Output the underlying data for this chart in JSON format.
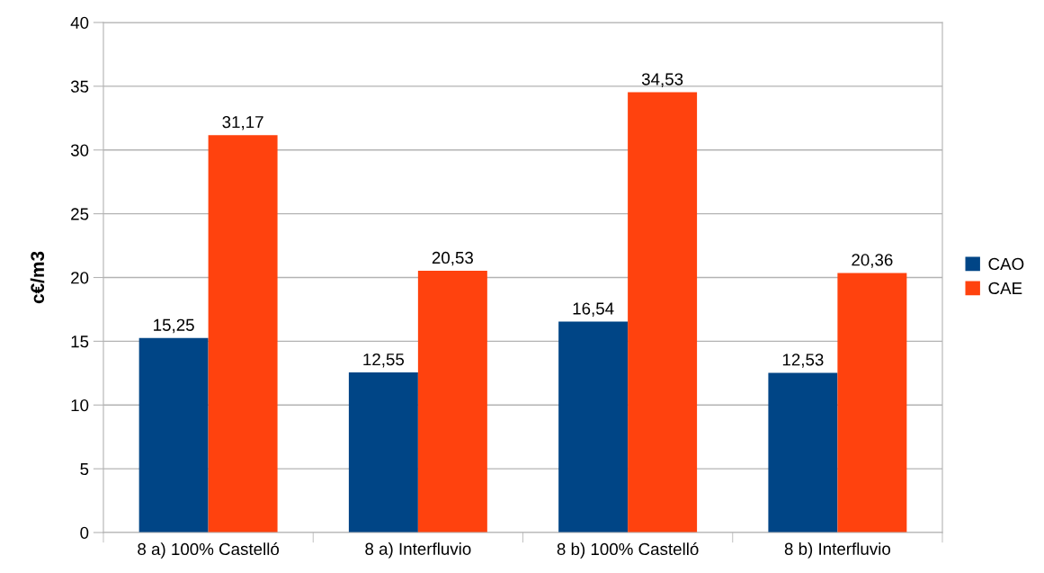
{
  "chart_data": {
    "type": "bar",
    "ylabel": "c€/m3",
    "categories": [
      "8 a) 100% Castelló",
      "8 a) Interfluvio",
      "8 b) 100% Castelló",
      "8 b) Interfluvio"
    ],
    "series": [
      {
        "name": "CAO",
        "color": "#004586",
        "values": [
          15.25,
          12.55,
          16.54,
          12.53
        ],
        "value_labels": [
          "15,25",
          "12,55",
          "16,54",
          "12,53"
        ]
      },
      {
        "name": "CAE",
        "color": "#ff420e",
        "values": [
          31.17,
          20.53,
          34.53,
          20.36
        ],
        "value_labels": [
          "31,17",
          "20,53",
          "34,53",
          "20,36"
        ]
      }
    ],
    "ylim": [
      0,
      40
    ],
    "yticks": [
      0,
      5,
      10,
      15,
      20,
      25,
      30,
      35,
      40
    ],
    "grid": "y",
    "legend": "right"
  }
}
